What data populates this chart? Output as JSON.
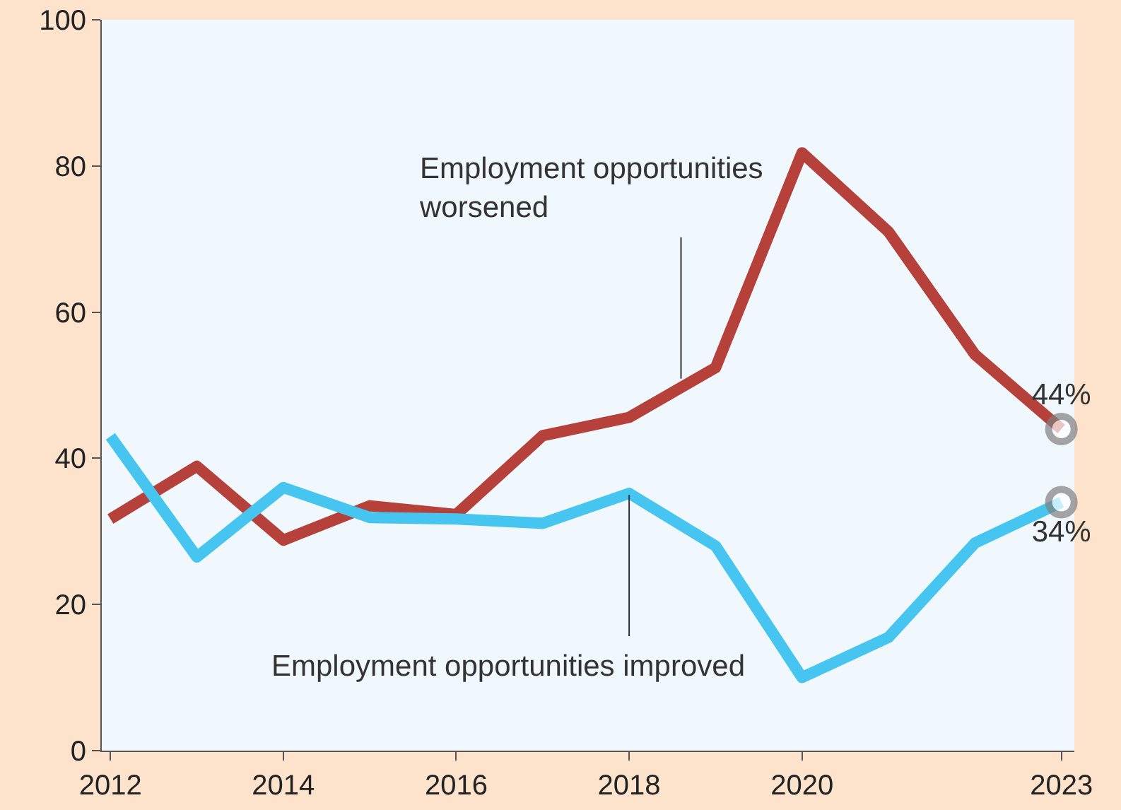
{
  "chart_data": {
    "type": "line",
    "x": [
      2012,
      2013,
      2014,
      2015,
      2016,
      2017,
      2018,
      2019,
      2020,
      2021,
      2022,
      2023
    ],
    "series": [
      {
        "color": "#b5413a",
        "values": [
          31.7,
          38.9,
          28.8,
          33.5,
          32.3,
          43.1,
          45.6,
          52.4,
          81.8,
          71,
          54.2,
          44
        ],
        "value_labels": [
          null,
          null,
          null,
          null,
          null,
          null,
          null,
          null,
          null,
          null,
          null,
          "44%"
        ]
      },
      {
        "color": "#45c5ef",
        "values": [
          43,
          26.5,
          36,
          31.9,
          31.7,
          31.1,
          35.2,
          28,
          10,
          15.5,
          28.4,
          34
        ],
        "value_labels": [
          null,
          null,
          null,
          null,
          null,
          null,
          null,
          null,
          null,
          null,
          null,
          "34%"
        ]
      }
    ],
    "xlim": [
      2011.9,
      2023.15
    ],
    "xticks": [
      2012,
      2014,
      2016,
      2018,
      2020,
      2023
    ],
    "ylim": [
      0,
      100
    ],
    "yticks": [
      0,
      20,
      40,
      60,
      80,
      100
    ],
    "grid": false,
    "annotations": [
      {
        "text": "Employment opportunities\nworsened",
        "x": 2018.6,
        "y": 50.9
      },
      {
        "text": "Employment opportunities improved",
        "x": 2018,
        "y": 35
      }
    ]
  }
}
